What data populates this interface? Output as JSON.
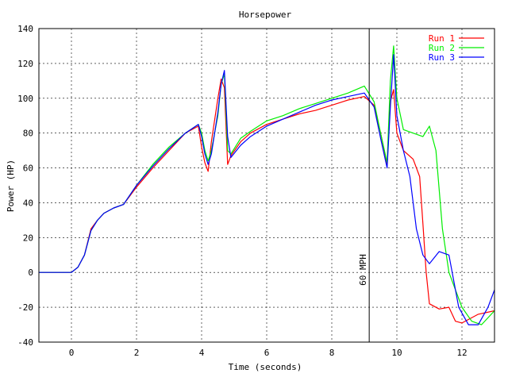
{
  "chart_data": {
    "type": "line",
    "title": "Horsepower",
    "xlabel": "Time (seconds)",
    "ylabel": "Power (HP)",
    "xlim": [
      -1,
      13
    ],
    "ylim": [
      -40,
      140
    ],
    "x_ticks": [
      0,
      2,
      4,
      6,
      8,
      10,
      12
    ],
    "y_ticks": [
      -40,
      -20,
      0,
      20,
      40,
      60,
      80,
      100,
      120,
      140
    ],
    "grid": true,
    "legend_position": "top-right",
    "annotations": [
      {
        "type": "vertical_line",
        "x": 9.15,
        "label": "60 MPH"
      }
    ],
    "series": [
      {
        "name": "Run 1",
        "color": "#ff0000",
        "x": [
          -1.0,
          0.0,
          0.2,
          0.4,
          0.6,
          0.8,
          1.0,
          1.3,
          1.6,
          2.0,
          2.5,
          3.0,
          3.5,
          3.9,
          4.0,
          4.1,
          4.2,
          4.3,
          4.5,
          4.6,
          4.7,
          4.8,
          4.9,
          5.2,
          5.5,
          6.0,
          6.5,
          7.0,
          7.5,
          8.0,
          8.5,
          9.0,
          9.3,
          9.5,
          9.7,
          9.8,
          9.9,
          10.0,
          10.2,
          10.5,
          10.7,
          10.8,
          10.9,
          11.0,
          11.3,
          11.6,
          11.8,
          12.0,
          12.5,
          13.0
        ],
        "values": [
          0,
          0,
          3,
          10,
          25,
          30,
          34,
          37,
          39,
          49,
          60,
          70,
          80,
          84,
          72,
          63,
          58,
          75,
          100,
          111,
          106,
          62,
          67,
          75,
          80,
          85,
          88,
          91,
          93,
          96,
          99,
          101,
          96,
          80,
          62,
          98,
          105,
          80,
          70,
          65,
          55,
          28,
          0,
          -18,
          -21,
          -20,
          -28,
          -29,
          -24,
          -22
        ]
      },
      {
        "name": "Run 2",
        "color": "#00ee00",
        "x": [
          -1.0,
          0.0,
          0.2,
          0.4,
          0.6,
          0.8,
          1.0,
          1.3,
          1.6,
          2.0,
          2.5,
          3.0,
          3.5,
          3.9,
          4.0,
          4.1,
          4.2,
          4.3,
          4.5,
          4.6,
          4.7,
          4.8,
          4.9,
          5.2,
          5.5,
          6.0,
          6.5,
          7.0,
          7.5,
          8.0,
          8.5,
          9.0,
          9.3,
          9.5,
          9.7,
          9.8,
          9.9,
          10.0,
          10.2,
          10.5,
          10.8,
          11.0,
          11.2,
          11.4,
          11.6,
          11.8,
          12.0,
          12.3,
          12.6,
          13.0
        ],
        "values": [
          0,
          0,
          3,
          10,
          24,
          30,
          34,
          37,
          39,
          50,
          62,
          72,
          80,
          85,
          80,
          70,
          64,
          70,
          90,
          108,
          114,
          70,
          68,
          77,
          81,
          87,
          90,
          94,
          97,
          100,
          103,
          107,
          98,
          80,
          63,
          110,
          130,
          100,
          82,
          80,
          78,
          84,
          70,
          25,
          0,
          -10,
          -20,
          -28,
          -30,
          -22
        ]
      },
      {
        "name": "Run 3",
        "color": "#0000ff",
        "x": [
          -1.0,
          0.0,
          0.2,
          0.4,
          0.6,
          0.8,
          1.0,
          1.3,
          1.6,
          2.0,
          2.5,
          3.0,
          3.5,
          3.9,
          4.0,
          4.1,
          4.2,
          4.3,
          4.5,
          4.6,
          4.7,
          4.8,
          4.9,
          5.2,
          5.5,
          6.0,
          6.5,
          7.0,
          7.5,
          8.0,
          8.5,
          9.0,
          9.3,
          9.5,
          9.7,
          9.8,
          9.9,
          10.0,
          10.2,
          10.4,
          10.6,
          10.8,
          11.0,
          11.3,
          11.6,
          11.9,
          12.2,
          12.5,
          12.8,
          13.0
        ],
        "values": [
          0,
          0,
          3,
          10,
          24,
          30,
          34,
          37,
          39,
          50,
          61,
          71,
          80,
          85,
          78,
          68,
          62,
          68,
          92,
          108,
          116,
          78,
          66,
          73,
          78,
          84,
          88,
          92,
          96,
          99,
          101,
          103,
          95,
          77,
          60,
          95,
          125,
          90,
          70,
          55,
          25,
          10,
          5,
          12,
          10,
          -20,
          -30,
          -30,
          -20,
          -10
        ]
      }
    ]
  }
}
